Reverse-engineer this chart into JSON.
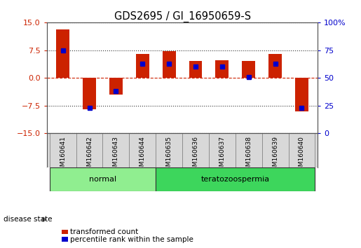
{
  "title": "GDS2695 / GI_16950659-S",
  "samples": [
    "GSM160641",
    "GSM160642",
    "GSM160643",
    "GSM160644",
    "GSM160635",
    "GSM160636",
    "GSM160637",
    "GSM160638",
    "GSM160639",
    "GSM160640"
  ],
  "transformed_count": [
    13.0,
    -8.5,
    -4.5,
    6.5,
    7.2,
    4.5,
    4.8,
    4.5,
    6.5,
    -9.0
  ],
  "percentile_rank": [
    75,
    23,
    38,
    63,
    63,
    60,
    60,
    51,
    63,
    23
  ],
  "left_ylim": [
    -15,
    15
  ],
  "left_yticks": [
    -15,
    -7.5,
    0,
    7.5,
    15
  ],
  "right_ylim": [
    0,
    100
  ],
  "right_yticks": [
    0,
    25,
    50,
    75,
    100
  ],
  "groups": [
    {
      "label": "normal",
      "indices": [
        0,
        1,
        2,
        3
      ],
      "color": "#90EE90"
    },
    {
      "label": "teratozoospermia",
      "indices": [
        4,
        5,
        6,
        7,
        8,
        9
      ],
      "color": "#3DD65C"
    }
  ],
  "bar_color_red": "#CC2200",
  "bar_color_blue": "#0000CC",
  "bg_color": "#FFFFFF",
  "tick_color_left": "#CC2200",
  "tick_color_right": "#0000CC",
  "zero_line_color": "#CC2200",
  "bar_width": 0.5,
  "disease_state_label": "disease state",
  "legend_entries": [
    "transformed count",
    "percentile rank within the sample"
  ],
  "sample_bg_color": "#D8D8D8",
  "sample_border_color": "#888888"
}
